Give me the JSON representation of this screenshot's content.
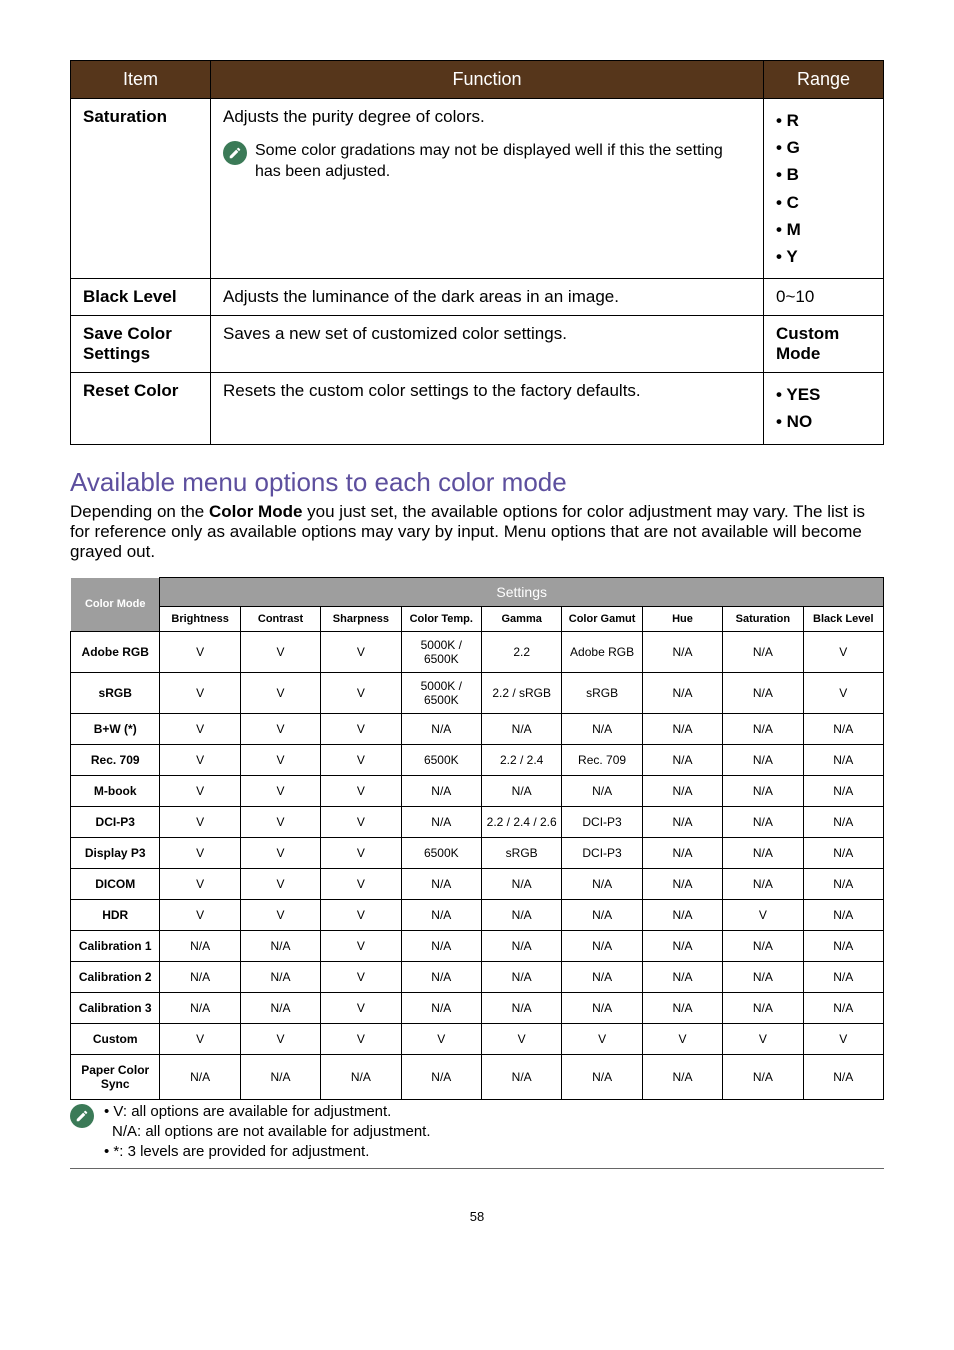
{
  "table1": {
    "headers": {
      "item": "Item",
      "function": "Function",
      "range": "Range"
    },
    "rows": [
      {
        "item": "Saturation",
        "func": "Adjusts the purity degree of colors.",
        "note": "Some color gradations may not be displayed well if this the setting has been adjusted.",
        "range": [
          "• R",
          "• G",
          "• B",
          "• C",
          "• M",
          "• Y"
        ]
      },
      {
        "item": "Black Level",
        "func": "Adjusts the luminance of the dark areas in an image.",
        "range": [
          "0~10"
        ]
      },
      {
        "item": "Save Color Settings",
        "func": "Saves a new set of customized color settings.",
        "range": [
          "Custom Mode"
        ]
      },
      {
        "item": "Reset Color",
        "func": "Resets the custom color settings to the factory defaults.",
        "range": [
          "• YES",
          "• NO"
        ]
      }
    ]
  },
  "section": {
    "title": "Available menu options to each color mode",
    "intro_pre": "Depending on the ",
    "intro_bold": "Color Mode",
    "intro_post": " you just set, the available options for color adjustment may vary. The list is for reference only as available options may vary by input. Menu options that are not available will become grayed out."
  },
  "table2": {
    "settings_hdr": "Settings",
    "colormode_hdr": "Color Mode",
    "cols": [
      "Brightness",
      "Contrast",
      "Sharpness",
      "Color Temp.",
      "Gamma",
      "Color Gamut",
      "Hue",
      "Saturation",
      "Black Level"
    ],
    "rows": [
      {
        "label": "Adobe RGB",
        "cells": [
          "V",
          "V",
          "V",
          "5000K / 6500K",
          "2.2",
          "Adobe RGB",
          "N/A",
          "N/A",
          "V"
        ]
      },
      {
        "label": "sRGB",
        "cells": [
          "V",
          "V",
          "V",
          "5000K / 6500K",
          "2.2 / sRGB",
          "sRGB",
          "N/A",
          "N/A",
          "V"
        ]
      },
      {
        "label": "B+W (*)",
        "cells": [
          "V",
          "V",
          "V",
          "N/A",
          "N/A",
          "N/A",
          "N/A",
          "N/A",
          "N/A"
        ]
      },
      {
        "label": "Rec. 709",
        "cells": [
          "V",
          "V",
          "V",
          "6500K",
          "2.2 / 2.4",
          "Rec. 709",
          "N/A",
          "N/A",
          "N/A"
        ]
      },
      {
        "label": "M-book",
        "cells": [
          "V",
          "V",
          "V",
          "N/A",
          "N/A",
          "N/A",
          "N/A",
          "N/A",
          "N/A"
        ]
      },
      {
        "label": "DCI-P3",
        "cells": [
          "V",
          "V",
          "V",
          "N/A",
          "2.2 / 2.4 / 2.6",
          "DCI-P3",
          "N/A",
          "N/A",
          "N/A"
        ]
      },
      {
        "label": "Display P3",
        "cells": [
          "V",
          "V",
          "V",
          "6500K",
          "sRGB",
          "DCI-P3",
          "N/A",
          "N/A",
          "N/A"
        ]
      },
      {
        "label": "DICOM",
        "cells": [
          "V",
          "V",
          "V",
          "N/A",
          "N/A",
          "N/A",
          "N/A",
          "N/A",
          "N/A"
        ]
      },
      {
        "label": "HDR",
        "cells": [
          "V",
          "V",
          "V",
          "N/A",
          "N/A",
          "N/A",
          "N/A",
          "V",
          "N/A"
        ]
      },
      {
        "label": "Calibration 1",
        "cells": [
          "N/A",
          "N/A",
          "V",
          "N/A",
          "N/A",
          "N/A",
          "N/A",
          "N/A",
          "N/A"
        ]
      },
      {
        "label": "Calibration 2",
        "cells": [
          "N/A",
          "N/A",
          "V",
          "N/A",
          "N/A",
          "N/A",
          "N/A",
          "N/A",
          "N/A"
        ]
      },
      {
        "label": "Calibration 3",
        "cells": [
          "N/A",
          "N/A",
          "V",
          "N/A",
          "N/A",
          "N/A",
          "N/A",
          "N/A",
          "N/A"
        ]
      },
      {
        "label": "Custom",
        "cells": [
          "V",
          "V",
          "V",
          "V",
          "V",
          "V",
          "V",
          "V",
          "V"
        ]
      },
      {
        "label": "Paper Color Sync",
        "cells": [
          "N/A",
          "N/A",
          "N/A",
          "N/A",
          "N/A",
          "N/A",
          "N/A",
          "N/A",
          "N/A"
        ]
      }
    ]
  },
  "footnotes": [
    "• V: all options are available for adjustment.",
    "  N/A: all options are not available for adjustment.",
    "• *: 3 levels are provided for adjustment."
  ],
  "page_number": "58"
}
